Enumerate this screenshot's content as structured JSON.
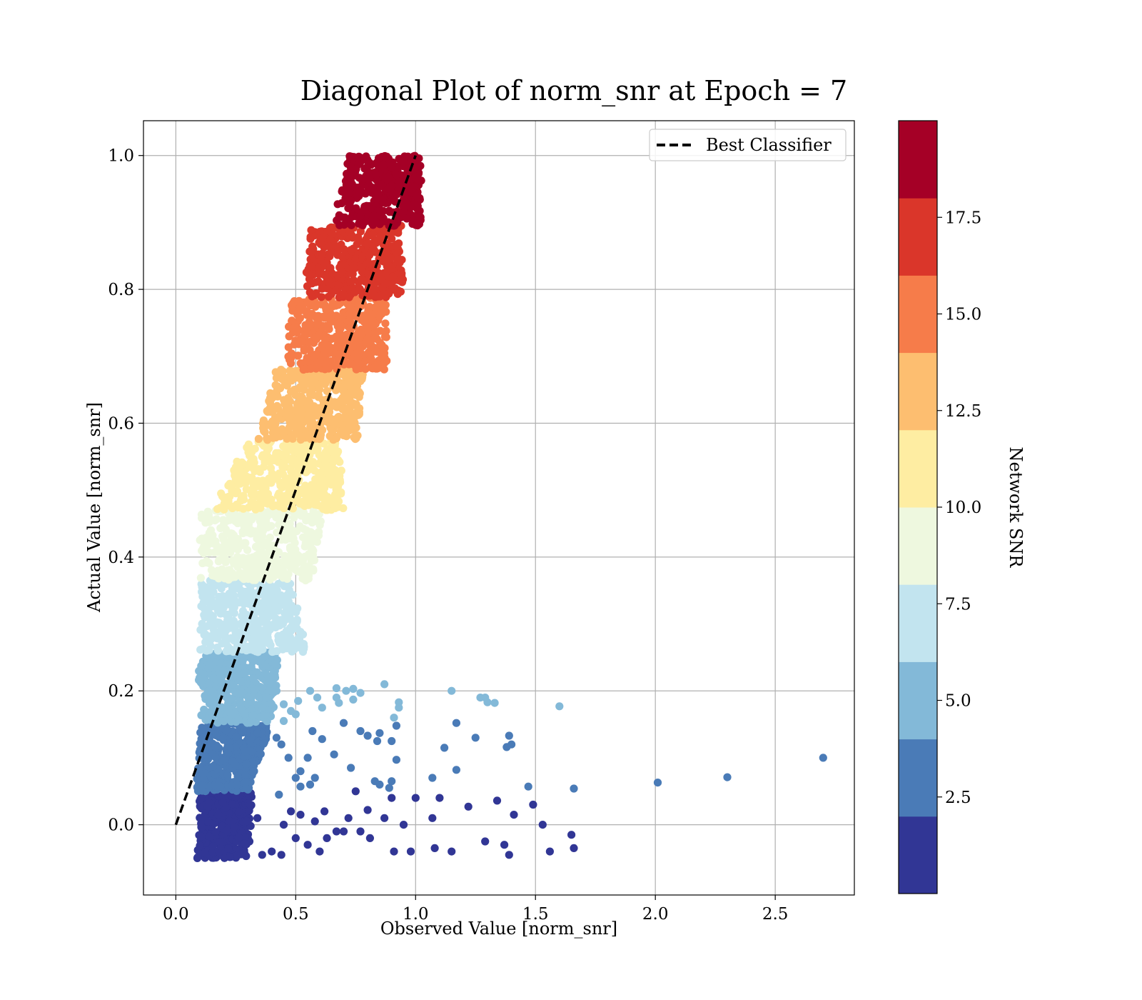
{
  "chart_data": {
    "type": "scatter",
    "title": "Diagonal Plot of norm_snr at Epoch = 7",
    "xlabel": "Observed Value [norm_snr]",
    "ylabel": "Actual Value [norm_snr]",
    "xlim": [
      -0.135,
      2.83
    ],
    "ylim": [
      -0.105,
      1.052
    ],
    "x_ticks": [
      0.0,
      0.5,
      1.0,
      1.5,
      2.0,
      2.5
    ],
    "x_tick_labels": [
      "0.0",
      "0.5",
      "1.0",
      "1.5",
      "2.0",
      "2.5"
    ],
    "y_ticks": [
      0.0,
      0.2,
      0.4,
      0.6,
      0.8,
      1.0
    ],
    "y_tick_labels": [
      "0.0",
      "0.2",
      "0.4",
      "0.6",
      "0.8",
      "1.0"
    ],
    "grid": true,
    "legend": {
      "placement": "top-right",
      "entries": [
        {
          "label": "Best Classifier",
          "style": "dashed",
          "color": "#000000"
        }
      ]
    },
    "reference_line": {
      "name": "Best Classifier",
      "x": [
        0.0,
        1.0
      ],
      "y": [
        0.0,
        1.0
      ]
    },
    "colorbar": {
      "label": "Network SNR",
      "range": [
        0.0,
        20.0
      ],
      "ticks": [
        2.5,
        5.0,
        7.5,
        10.0,
        12.5,
        15.0,
        17.5
      ],
      "tick_labels": [
        "2.5",
        "5.0",
        "7.5",
        "10.0",
        "12.5",
        "15.0",
        "17.5"
      ],
      "colors": [
        "#313695",
        "#4a7bb7",
        "#83b9d8",
        "#c2e4ef",
        "#eef8df",
        "#feeda2",
        "#fdbe70",
        "#f67c4a",
        "#da362a",
        "#a50026"
      ]
    },
    "bands": [
      {
        "y": [
          -0.05,
          0.05
        ],
        "x_left": [
          0.09,
          0.1
        ],
        "x_right": [
          0.3,
          0.32
        ]
      },
      {
        "y": [
          0.05,
          0.152
        ],
        "x_left": [
          0.09,
          0.1
        ],
        "x_right": [
          0.3,
          0.4
        ]
      },
      {
        "y": [
          0.152,
          0.258
        ],
        "x_left": [
          0.09,
          0.1
        ],
        "x_right": [
          0.4,
          0.43
        ]
      },
      {
        "y": [
          0.258,
          0.365
        ],
        "x_left": [
          0.1,
          0.1
        ],
        "x_right": [
          0.55,
          0.48
        ]
      },
      {
        "y": [
          0.365,
          0.47
        ],
        "x_left": [
          0.1,
          0.1
        ],
        "x_right": [
          0.57,
          0.62
        ]
      },
      {
        "y": [
          0.47,
          0.575
        ],
        "x_left": [
          0.15,
          0.3
        ],
        "x_right": [
          0.72,
          0.67
        ]
      },
      {
        "y": [
          0.575,
          0.68
        ],
        "x_left": [
          0.34,
          0.42
        ],
        "x_right": [
          0.76,
          0.78
        ]
      },
      {
        "y": [
          0.68,
          0.788
        ],
        "x_left": [
          0.46,
          0.48
        ],
        "x_right": [
          0.88,
          0.88
        ]
      },
      {
        "y": [
          0.788,
          0.895
        ],
        "x_left": [
          0.54,
          0.56
        ],
        "x_right": [
          0.95,
          0.94
        ]
      },
      {
        "y": [
          0.895,
          1.0
        ],
        "x_left": [
          0.66,
          0.72
        ],
        "x_right": [
          1.02,
          1.02
        ]
      }
    ],
    "outliers": {
      "color_index": [
        0,
        1,
        2
      ],
      "points": [
        [
          [
            0.55,
            -0.03
          ],
          [
            0.6,
            -0.04
          ],
          [
            0.63,
            -0.02
          ],
          [
            0.7,
            -0.01
          ],
          [
            0.77,
            -0.01
          ],
          [
            0.81,
            -0.02
          ],
          [
            0.91,
            -0.04
          ],
          [
            0.98,
            -0.04
          ],
          [
            1.08,
            -0.035
          ],
          [
            1.15,
            -0.04
          ],
          [
            1.29,
            -0.025
          ],
          [
            1.37,
            -0.03
          ],
          [
            1.39,
            -0.045
          ],
          [
            1.56,
            -0.04
          ],
          [
            1.66,
            -0.035
          ],
          [
            1.65,
            -0.015
          ],
          [
            1.53,
            0.0
          ],
          [
            1.41,
            0.015
          ],
          [
            1.49,
            0.03
          ],
          [
            1.34,
            0.036
          ],
          [
            1.22,
            0.027
          ],
          [
            1.1,
            0.04
          ],
          [
            1.0,
            0.04
          ],
          [
            0.9,
            0.04
          ],
          [
            0.87,
            0.01
          ],
          [
            0.95,
            0.0
          ],
          [
            0.75,
            0.05
          ],
          [
            0.8,
            0.022
          ],
          [
            0.62,
            0.02
          ],
          [
            0.52,
            0.015
          ],
          [
            0.48,
            0.02
          ],
          [
            0.45,
            0.0
          ],
          [
            0.5,
            -0.02
          ],
          [
            0.4,
            -0.04
          ],
          [
            0.44,
            -0.045
          ],
          [
            0.36,
            -0.045
          ],
          [
            0.34,
            0.01
          ],
          [
            0.31,
            0.03
          ],
          [
            0.72,
            0.01
          ],
          [
            0.58,
            0.005
          ],
          [
            1.07,
            0.01
          ],
          [
            0.67,
            -0.01
          ]
        ],
        [
          [
            0.43,
            0.045
          ],
          [
            0.5,
            0.07
          ],
          [
            0.52,
            0.057
          ],
          [
            0.56,
            0.06
          ],
          [
            0.58,
            0.07
          ],
          [
            0.7,
            0.152
          ],
          [
            0.77,
            0.14
          ],
          [
            0.8,
            0.133
          ],
          [
            0.84,
            0.125
          ],
          [
            0.85,
            0.137
          ],
          [
            0.9,
            0.125
          ],
          [
            0.92,
            0.148
          ],
          [
            0.57,
            0.14
          ],
          [
            0.61,
            0.128
          ],
          [
            0.66,
            0.105
          ],
          [
            0.73,
            0.085
          ],
          [
            0.85,
            0.06
          ],
          [
            0.83,
            0.065
          ],
          [
            0.9,
            0.065
          ],
          [
            0.89,
            0.055
          ],
          [
            0.92,
            0.097
          ],
          [
            1.07,
            0.07
          ],
          [
            1.12,
            0.115
          ],
          [
            1.17,
            0.152
          ],
          [
            1.17,
            0.082
          ],
          [
            1.25,
            0.13
          ],
          [
            1.38,
            0.116
          ],
          [
            1.39,
            0.133
          ],
          [
            1.4,
            0.12
          ],
          [
            1.47,
            0.057
          ],
          [
            1.66,
            0.054
          ],
          [
            2.01,
            0.063
          ],
          [
            2.3,
            0.071
          ],
          [
            2.7,
            0.1
          ],
          [
            0.44,
            0.12
          ],
          [
            0.47,
            0.1
          ],
          [
            0.42,
            0.13
          ],
          [
            0.52,
            0.08
          ],
          [
            0.55,
            0.1
          ]
        ],
        [
          [
            0.42,
            0.2
          ],
          [
            0.45,
            0.18
          ],
          [
            0.48,
            0.17
          ],
          [
            0.51,
            0.185
          ],
          [
            0.56,
            0.2
          ],
          [
            0.59,
            0.19
          ],
          [
            0.61,
            0.175
          ],
          [
            0.67,
            0.204
          ],
          [
            0.67,
            0.19
          ],
          [
            0.68,
            0.182
          ],
          [
            0.71,
            0.2
          ],
          [
            0.74,
            0.203
          ],
          [
            0.74,
            0.187
          ],
          [
            0.77,
            0.197
          ],
          [
            0.87,
            0.21
          ],
          [
            0.93,
            0.183
          ],
          [
            0.93,
            0.175
          ],
          [
            0.91,
            0.16
          ],
          [
            1.15,
            0.2
          ],
          [
            1.27,
            0.19
          ],
          [
            1.29,
            0.19
          ],
          [
            1.3,
            0.183
          ],
          [
            1.33,
            0.182
          ],
          [
            1.6,
            0.177
          ],
          [
            0.38,
            0.19
          ],
          [
            0.5,
            0.165
          ],
          [
            0.45,
            0.155
          ]
        ]
      ]
    }
  }
}
